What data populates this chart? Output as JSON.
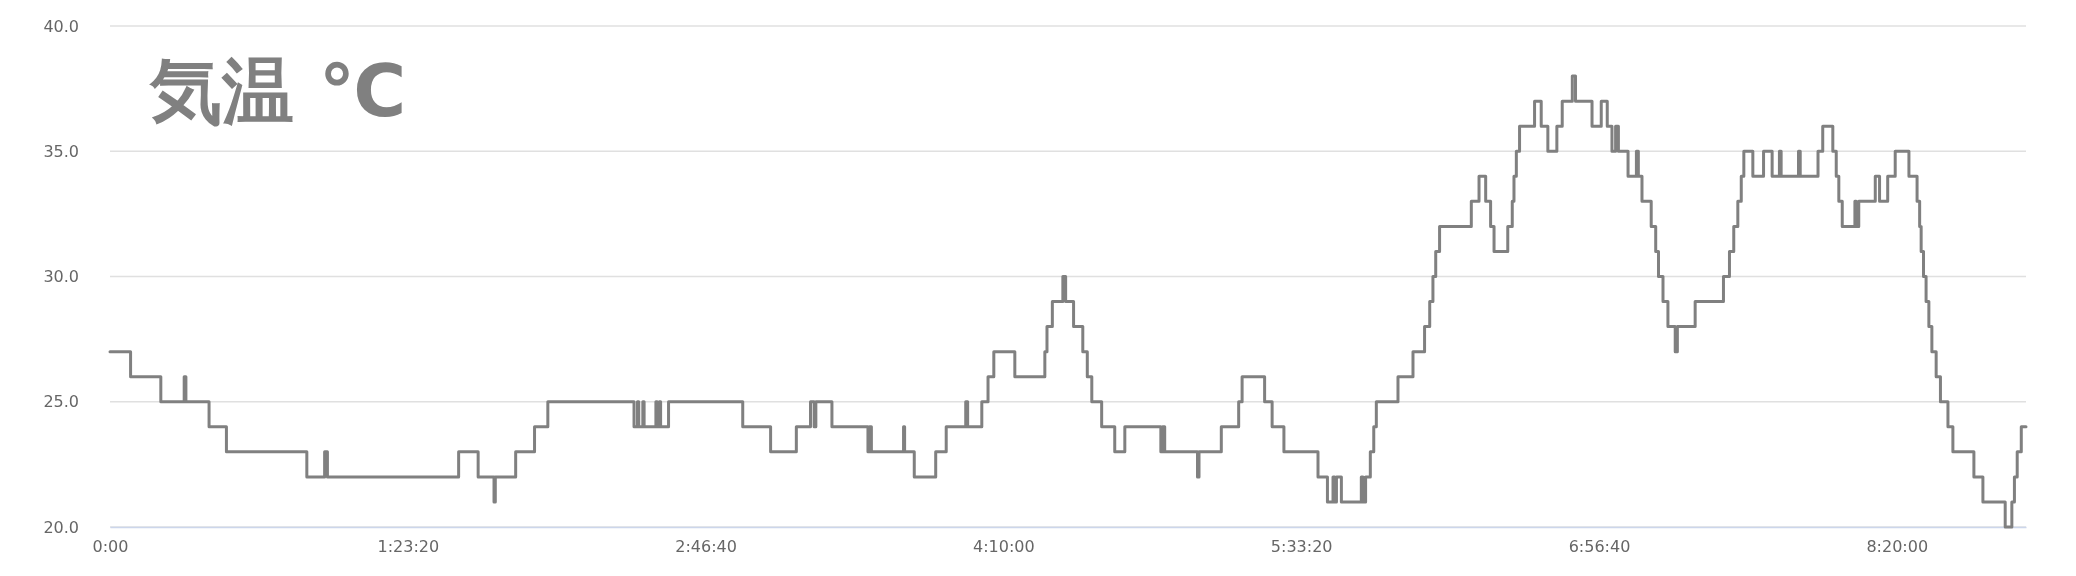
{
  "chart_data": {
    "type": "step",
    "title": "気温 ℃",
    "x": [
      0,
      0.096,
      0.237,
      0.346,
      0.354,
      0.462,
      0.543,
      0.918,
      1.001,
      1.014,
      1.626,
      1.717,
      1.791,
      1.797,
      1.892,
      1.98,
      2.042,
      2.444,
      2.46,
      2.466,
      2.485,
      2.491,
      2.546,
      2.552,
      2.562,
      2.568,
      2.605,
      2.951,
      3.081,
      3.201,
      3.267,
      3.284,
      3.292,
      3.367,
      3.535,
      3.542,
      3.551,
      3.701,
      3.706,
      3.751,
      3.851,
      3.9,
      3.991,
      4.0,
      4.066,
      4.095,
      4.122,
      4.22,
      4.36,
      4.37,
      4.395,
      4.444,
      4.457,
      4.494,
      4.537,
      4.558,
      4.579,
      4.625,
      4.686,
      4.733,
      4.901,
      4.909,
      4.919,
      5.072,
      5.079,
      5.183,
      5.264,
      5.28,
      5.385,
      5.42,
      5.475,
      5.634,
      5.678,
      5.704,
      5.712,
      5.72,
      5.743,
      5.836,
      5.844,
      5.856,
      5.878,
      5.894,
      5.906,
      6.007,
      6.077,
      6.131,
      6.155,
      6.17,
      6.183,
      6.201,
      6.349,
      6.385,
      6.416,
      6.439,
      6.455,
      6.519,
      6.54,
      6.548,
      6.559,
      6.574,
      6.644,
      6.675,
      6.706,
      6.748,
      6.773,
      6.82,
      6.835,
      6.912,
      6.955,
      6.983,
      7.005,
      7.022,
      7.035,
      7.08,
      7.119,
      7.128,
      7.145,
      7.188,
      7.209,
      7.222,
      7.243,
      7.266,
      7.3,
      7.31,
      7.393,
      7.525,
      7.553,
      7.573,
      7.592,
      7.608,
      7.62,
      7.662,
      7.712,
      7.752,
      7.786,
      7.794,
      7.875,
      7.883,
      7.966,
      7.988,
      8.035,
      8.051,
      8.063,
      8.079,
      8.138,
      8.144,
      8.156,
      8.233,
      8.253,
      8.291,
      8.326,
      8.39,
      8.428,
      8.44,
      8.447,
      8.458,
      8.47,
      8.483,
      8.497,
      8.517,
      8.537,
      8.572,
      8.595,
      8.693,
      8.735,
      8.839,
      8.87,
      8.882,
      8.895,
      8.914,
      8.936
    ],
    "series": [
      {
        "color": "#808080",
        "values": [
          27,
          26,
          25,
          26,
          25,
          24,
          23,
          22,
          23,
          22,
          23,
          22,
          21,
          22,
          23,
          24,
          25,
          24,
          25,
          24,
          25,
          24,
          25,
          24,
          25,
          24,
          25,
          24,
          23,
          24,
          25,
          24,
          25,
          24,
          23,
          24,
          23,
          24,
          23,
          22,
          23,
          24,
          25,
          24,
          25,
          26,
          27,
          26,
          27,
          28,
          29,
          30,
          29,
          28,
          27,
          26,
          25,
          24,
          23,
          24,
          23,
          24,
          23,
          22,
          23,
          24,
          25,
          26,
          25,
          24,
          23,
          22,
          21,
          22,
          21,
          22,
          21,
          22,
          21,
          22,
          23,
          24,
          25,
          26,
          27,
          28,
          29,
          30,
          31,
          32,
          33,
          34,
          33,
          32,
          31,
          32,
          33,
          34,
          35,
          36,
          37,
          36,
          35,
          36,
          37,
          38,
          37,
          36,
          37,
          36,
          35,
          36,
          35,
          34,
          35,
          34,
          33,
          32,
          31,
          30,
          29,
          28,
          27,
          28,
          29,
          30,
          31,
          32,
          33,
          34,
          35,
          34,
          35,
          34,
          35,
          34,
          35,
          34,
          35,
          36,
          35,
          34,
          33,
          32,
          33,
          32,
          33,
          34,
          33,
          34,
          35,
          34,
          33,
          32,
          31,
          30,
          29,
          28,
          27,
          26,
          25,
          24,
          23,
          22,
          21,
          20,
          21,
          22,
          23,
          24,
          24
        ]
      }
    ],
    "xlim": [
      0,
      8.936
    ],
    "xticks": [
      {
        "value": 0,
        "label": "0:00"
      },
      {
        "value": 1.388889,
        "label": "1:23:20"
      },
      {
        "value": 2.777778,
        "label": "2:46:40"
      },
      {
        "value": 4.166667,
        "label": "4:10:00"
      },
      {
        "value": 5.555556,
        "label": "5:33:20"
      },
      {
        "value": 6.944444,
        "label": "6:56:40"
      },
      {
        "value": 8.333333,
        "label": "8:20:00"
      }
    ],
    "ylim": [
      20,
      40
    ],
    "yticks": [
      {
        "value": 20,
        "label": "20.0"
      },
      {
        "value": 25,
        "label": "25.0"
      },
      {
        "value": 30,
        "label": "30.0"
      },
      {
        "value": 35,
        "label": "35.0"
      },
      {
        "value": 40,
        "label": "40.0"
      }
    ],
    "grid": "y",
    "marker": "none",
    "line_style": "solid"
  }
}
